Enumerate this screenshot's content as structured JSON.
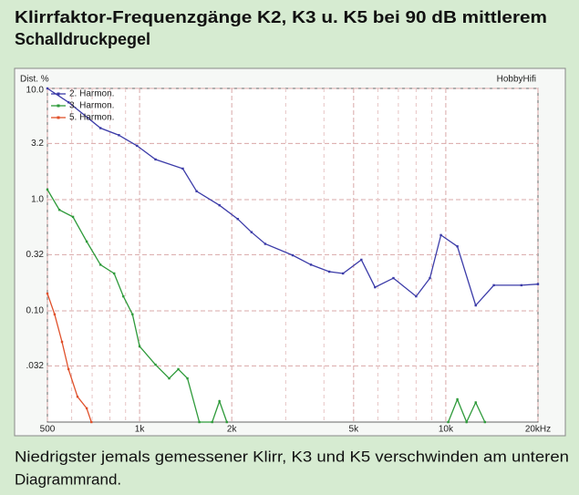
{
  "chart_data": {
    "type": "line",
    "title": "Klirrfaktor-Frequenzgänge K2, K3 u. K5 bei 90 dB mittlerem",
    "subtitle": "Schalldruckpegel",
    "caption": [
      "Niedrigster jemals gemessener Klirr, K3 und K5 verschwinden am unteren",
      "Diagrammrand."
    ],
    "y_label": "Dist. %",
    "brand": "HobbyHifi",
    "x_log": true,
    "y_log": true,
    "grid": true,
    "legend": "upper left",
    "xlim": [
      500,
      20000
    ],
    "xticks": [
      500,
      {
        "value": 1000,
        "label": "1k"
      },
      {
        "value": 2000,
        "label": "2k"
      },
      {
        "value": 5000,
        "label": "5k"
      },
      {
        "value": 10000,
        "label": "10k"
      },
      {
        "value": 20000,
        "label": "20kHz"
      }
    ],
    "xminor_ticks": [
      600,
      700,
      800,
      900,
      3000,
      4000,
      6000,
      7000,
      8000,
      9000
    ],
    "ylim": [
      0.01,
      10
    ],
    "yticks": [
      {
        "value": 10,
        "label": "10.0"
      },
      3.2,
      {
        "value": 1,
        "label": "1.0"
      },
      0.32,
      {
        "value": 0.1,
        "label": "0.10"
      },
      {
        "value": 0.032,
        "label": ".032"
      }
    ],
    "series": [
      {
        "name": "2. Harmon.",
        "color": "#3b3ba8",
        "x": [
          500,
          586,
          745,
          856,
          981,
          1127,
          1384,
          1535,
          1823,
          2092,
          2320,
          2572,
          3162,
          3628,
          4163,
          4617,
          5300,
          5874,
          6745,
          8000,
          8874,
          9640,
          10910,
          12525,
          14350,
          17660,
          20000
        ],
        "values": [
          10,
          7.5,
          4.4,
          3.8,
          3.05,
          2.3,
          1.9,
          1.19,
          0.89,
          0.67,
          0.51,
          0.4,
          0.316,
          0.26,
          0.225,
          0.217,
          0.288,
          0.163,
          0.197,
          0.135,
          0.197,
          0.48,
          0.38,
          0.112,
          0.17,
          0.17,
          0.174
        ]
      },
      {
        "name": "3. Harmon.",
        "color": "#2e9a3a",
        "x": [
          500,
          547,
          606,
          672,
          745,
          826,
          885,
          948,
          1000,
          1127,
          1249,
          1338,
          1433,
          1567,
          1726,
          1823,
          1927,
          5000,
          10185,
          10910,
          11690,
          12525,
          13420
        ],
        "values": [
          1.23,
          0.81,
          0.7,
          0.42,
          0.26,
          0.217,
          0.135,
          0.093,
          0.048,
          0.0328,
          0.0247,
          0.0299,
          0.0247,
          0.01,
          0.01,
          0.0154,
          0.01,
          null,
          0.01,
          0.016,
          0.01,
          0.015,
          0.01
        ]
      },
      {
        "name": "5. Harmon.",
        "color": "#e0502a",
        "x": [
          500,
          528,
          558,
          586,
          627,
          672,
          696
        ],
        "values": [
          0.143,
          0.093,
          0.0526,
          0.0299,
          0.0169,
          0.0133,
          0.01
        ]
      }
    ]
  }
}
